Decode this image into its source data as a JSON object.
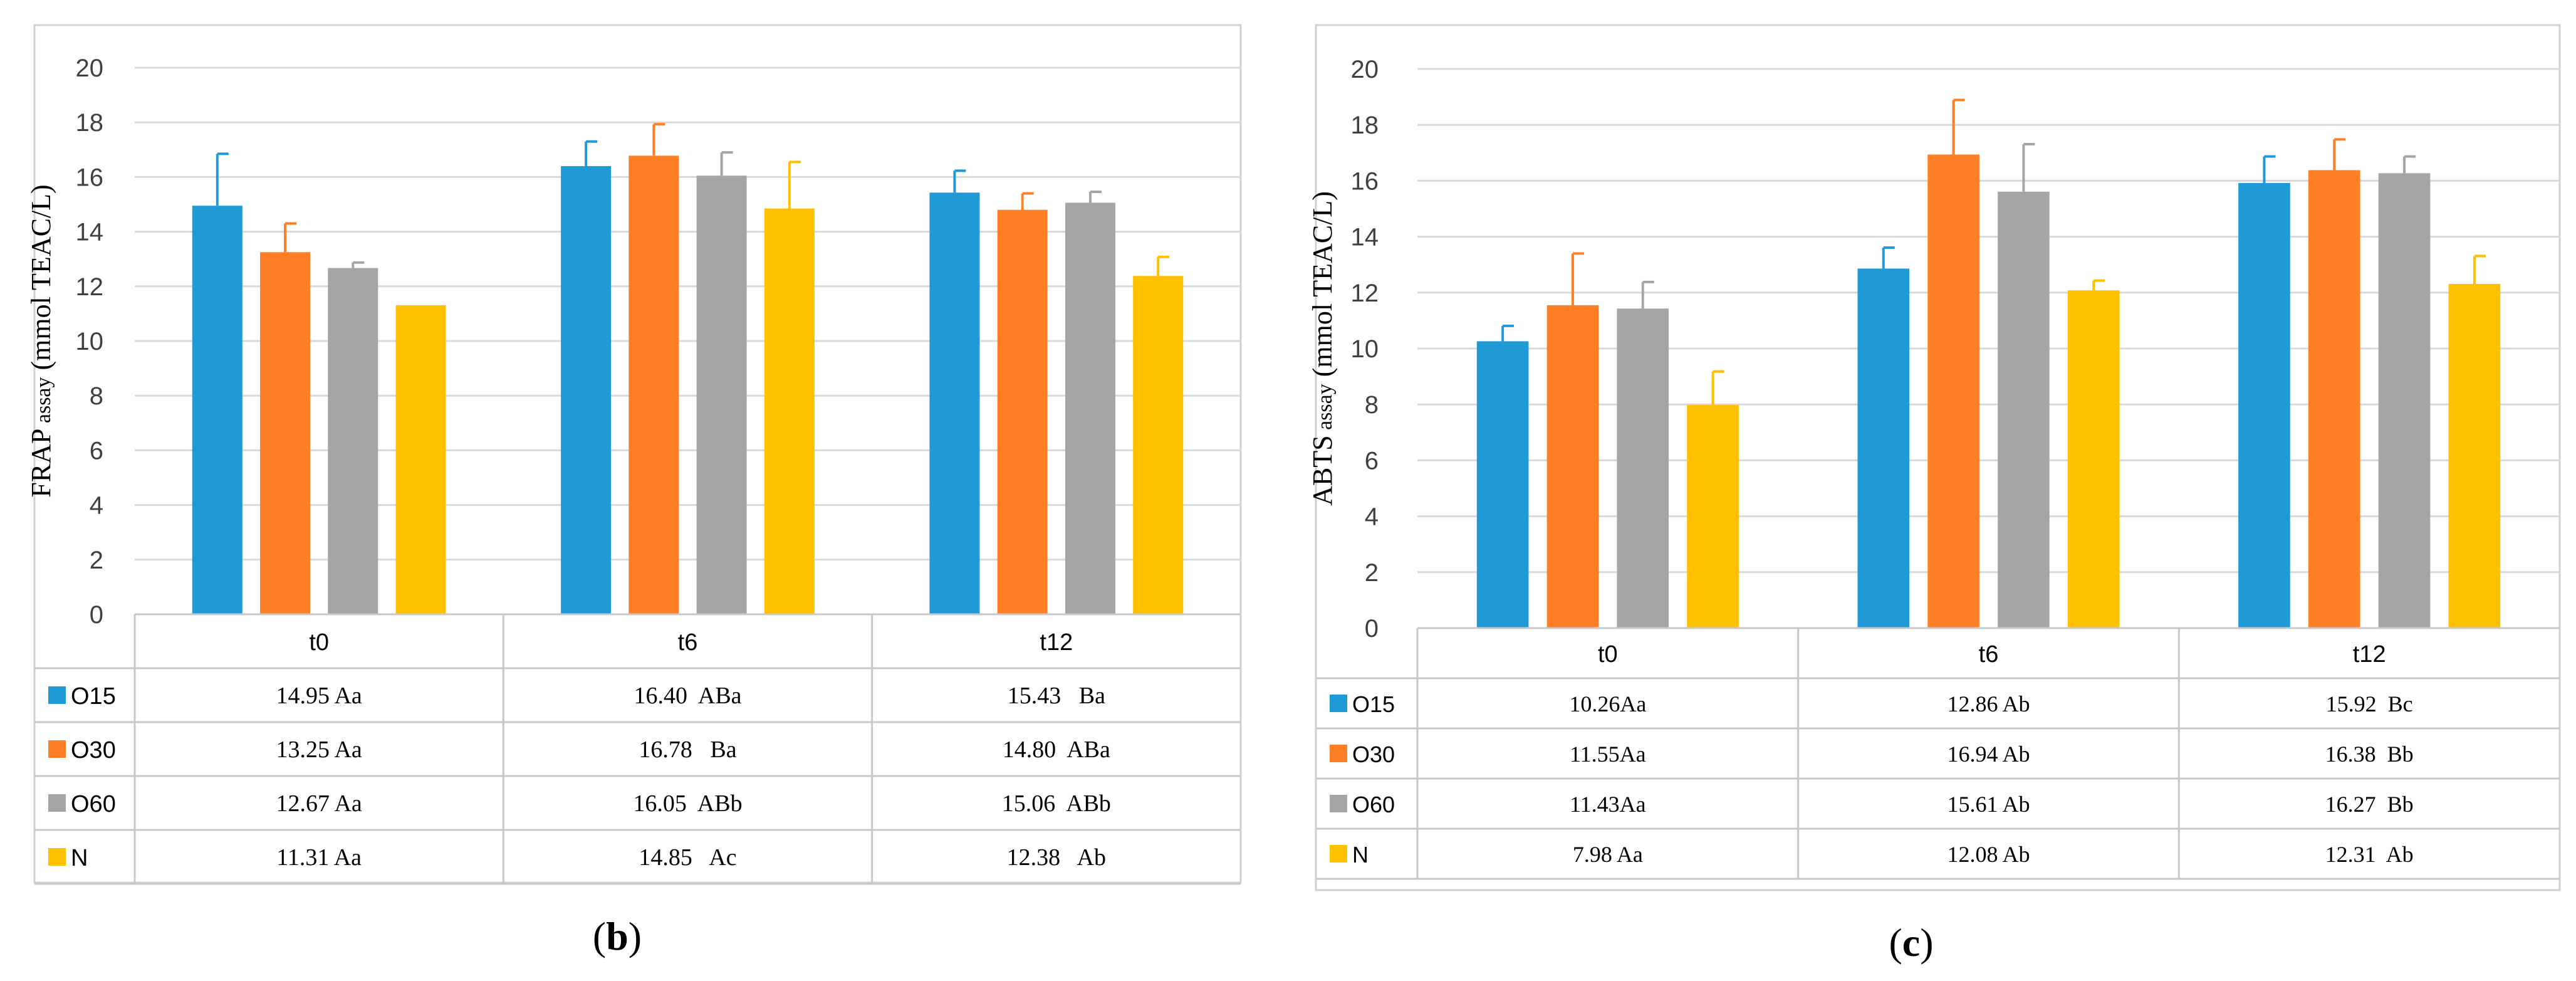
{
  "colors": {
    "O15": "#1f9ad6",
    "O30": "#fe7f26",
    "O60": "#a5a5a5",
    "N": "#ffc000",
    "grid": "#d9d9d9",
    "table_border": "#c8c8c8",
    "axis_text": "#404040"
  },
  "panels": [
    {
      "label_open": "(",
      "label_letter": "b",
      "label_close": ")"
    },
    {
      "label_open": "(",
      "label_letter": "c",
      "label_close": ")"
    }
  ],
  "chart_data": [
    {
      "type": "bar",
      "panel": "b",
      "title": "",
      "ylabel": "FRAP assay (mmol TEAC/L)",
      "ylabel_main": "FRAP",
      "ylabel_small": " assay",
      "ylabel_tail": " (mmol TEAC/L)",
      "xlabel": "",
      "ylim": [
        0,
        20
      ],
      "yticks": [
        0,
        2,
        4,
        6,
        8,
        10,
        12,
        14,
        16,
        18,
        20
      ],
      "grid": true,
      "categories": [
        "t0",
        "t6",
        "t12"
      ],
      "series": [
        {
          "name": "O15",
          "values": [
            14.95,
            16.4,
            15.43
          ],
          "errors": [
            1.9,
            0.9,
            0.8
          ],
          "labels": [
            "14.95 Aa",
            "16.40  ABa",
            "15.43   Ba"
          ]
        },
        {
          "name": "O30",
          "values": [
            13.25,
            16.78,
            14.8
          ],
          "errors": [
            1.05,
            1.15,
            0.6
          ],
          "labels": [
            "13.25 Aa",
            "16.78   Ba",
            "14.80  ABa"
          ]
        },
        {
          "name": "O60",
          "values": [
            12.67,
            16.05,
            15.06
          ],
          "errors": [
            0.2,
            0.85,
            0.4
          ],
          "labels": [
            "12.67 Aa",
            "16.05  ABb",
            "15.06  ABb"
          ]
        },
        {
          "name": "N",
          "values": [
            11.31,
            14.85,
            12.38
          ],
          "errors": [
            0.0,
            1.7,
            0.7
          ],
          "labels": [
            "11.31 Aa",
            "14.85   Ac",
            "12.38   Ab"
          ]
        }
      ]
    },
    {
      "type": "bar",
      "panel": "c",
      "title": "",
      "ylabel": "ABTS assay (mmol TEAC/L)",
      "ylabel_main": "ABTS",
      "ylabel_small": " assay",
      "ylabel_tail": " (mmol TEAC/L)",
      "xlabel": "",
      "ylim": [
        0,
        20
      ],
      "yticks": [
        0,
        2,
        4,
        6,
        8,
        10,
        12,
        14,
        16,
        18,
        20
      ],
      "grid": true,
      "categories": [
        "t0",
        "t6",
        "t12"
      ],
      "series": [
        {
          "name": "O15",
          "values": [
            10.26,
            12.86,
            15.92
          ],
          "errors": [
            0.55,
            0.75,
            0.95
          ],
          "labels": [
            "10.26Aa",
            "12.86 Ab",
            "15.92  Bc"
          ]
        },
        {
          "name": "O30",
          "values": [
            11.55,
            16.94,
            16.38
          ],
          "errors": [
            1.85,
            1.95,
            1.1
          ],
          "labels": [
            "11.55Aa",
            "16.94 Ab",
            "16.38  Bb"
          ]
        },
        {
          "name": "O60",
          "values": [
            11.43,
            15.61,
            16.27
          ],
          "errors": [
            0.95,
            1.7,
            0.6
          ],
          "labels": [
            "11.43Aa",
            "15.61 Ab",
            "16.27  Bb"
          ]
        },
        {
          "name": "N",
          "values": [
            7.98,
            12.08,
            12.31
          ],
          "errors": [
            1.2,
            0.35,
            1.0
          ],
          "labels": [
            "7.98 Aa",
            "12.08 Ab",
            "12.31  Ab"
          ]
        }
      ]
    }
  ]
}
